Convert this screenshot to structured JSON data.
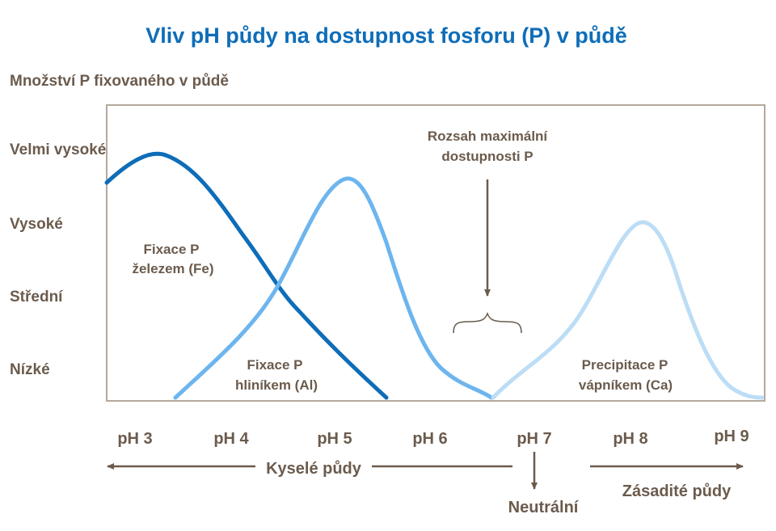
{
  "title": "Vliv pH půdy na dostupnost fosforu (P) v půdě",
  "y_axis_title": "Množství P fixovaného v půdě",
  "y_levels": [
    "Velmi vysoké",
    "Vysoké",
    "Střední",
    "Nízké"
  ],
  "ph_labels": [
    "pH 3",
    "pH 4",
    "pH 5",
    "pH 6",
    "pH 7",
    "pH 8",
    "pH 9"
  ],
  "curves": [
    {
      "label_lines": [
        "Fixace P",
        "železem (Fe)"
      ],
      "color": "#0e6db8"
    },
    {
      "label_lines": [
        "Fixace P",
        "hliníkem (Al)"
      ],
      "color": "#6db5ee"
    },
    {
      "label_lines": [
        "Precipitace P",
        "vápníkem (Ca)"
      ],
      "color": "#bcddf5"
    }
  ],
  "max_availability_lines": [
    "Rozsah maximální",
    "dostupnosti P"
  ],
  "acid_label": "Kyselé půdy",
  "neutral_label": "Neutrální",
  "alkaline_label": "Zásadité půdy",
  "colors": {
    "title": "#0e6db8",
    "text": "#6b5b4d",
    "frame": "#b5a99c"
  }
}
